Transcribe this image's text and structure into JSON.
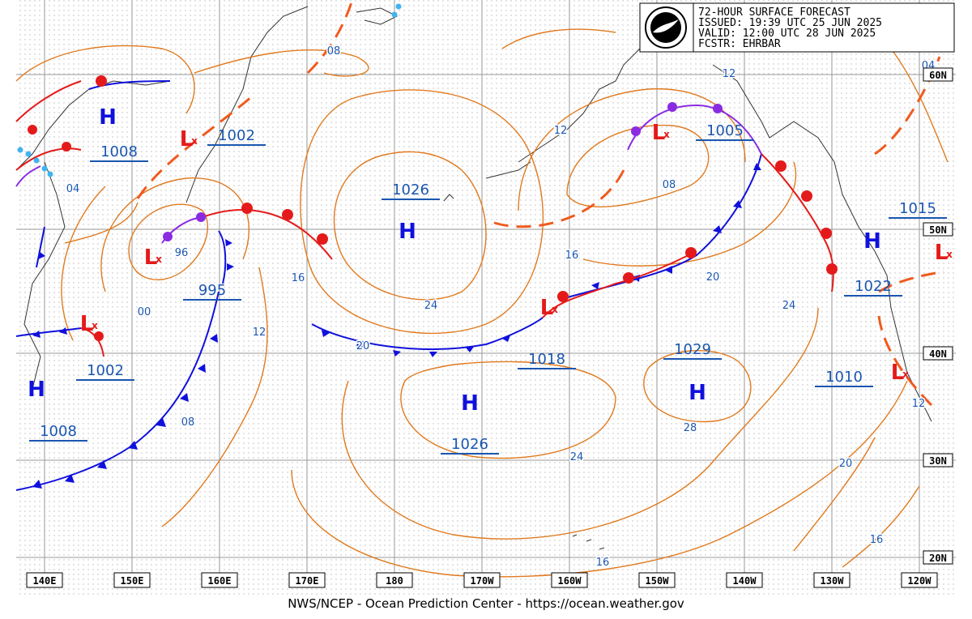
{
  "header": {
    "title": "72-HOUR SURFACE FORECAST",
    "issued": "ISSUED: 19:39 UTC 25 JUN 2025",
    "valid": "VALID:  12:00 UTC 28 JUN 2025",
    "forecaster": "FCSTR:  EHRBAR",
    "logo_text": "NOAA"
  },
  "footer": {
    "text": "NWS/NCEP - Ocean Prediction Center - https://ocean.weather.gov"
  },
  "longitude_labels": [
    "140E",
    "150E",
    "160E",
    "170E",
    "180",
    "170W",
    "160W",
    "150W",
    "140W",
    "130W",
    "120W"
  ],
  "latitude_labels": [
    "60N",
    "50N",
    "40N",
    "30N",
    "20N"
  ],
  "pressure_centers": [
    {
      "type": "H",
      "value": "1008"
    },
    {
      "type": "H",
      "value": "1026"
    },
    {
      "type": "H",
      "value": "1026"
    },
    {
      "type": "H",
      "value": "1029"
    },
    {
      "type": "H",
      "value": "1015"
    },
    {
      "type": "H",
      "value": "1008"
    },
    {
      "type": "L",
      "value": "1002"
    },
    {
      "type": "L",
      "value": "995"
    },
    {
      "type": "L",
      "value": "1002"
    },
    {
      "type": "L",
      "value": "1018"
    },
    {
      "type": "L",
      "value": "1005"
    },
    {
      "type": "L",
      "value": "1010"
    },
    {
      "type": "L",
      "value": "1022"
    }
  ],
  "isobar_labels": [
    "08",
    "04",
    "12",
    "12",
    "16",
    "96",
    "00",
    "16",
    "12",
    "08",
    "20",
    "24",
    "20",
    "24",
    "24",
    "28",
    "20",
    "16",
    "16",
    "08",
    "04",
    "12"
  ],
  "colors": {
    "isobar": "#e07a1e",
    "label": "#1a56b0",
    "cold_front": "#1010dd",
    "warm_front": "#e41a1a",
    "occluded_front": "#8a2be2",
    "trough": "#f05a1e",
    "grid": "#9a9a9a",
    "coast": "#333333"
  }
}
